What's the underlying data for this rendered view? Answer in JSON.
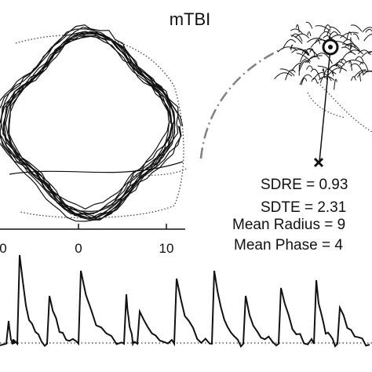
{
  "title": "mTBI",
  "x_ticks": [
    "0",
    "0",
    "10"
  ],
  "stats": {
    "sdre": "SDRE = 0.93",
    "sdte": "SDTE = 2.31",
    "mean_radius": "Mean Radius = 9",
    "mean_phase": "Mean Phase = 4"
  },
  "markers": {
    "center": "o",
    "origin": "×"
  },
  "colors": {
    "ink": "#111111",
    "dashed_arc": "#808080",
    "dotted": "#333333"
  }
}
